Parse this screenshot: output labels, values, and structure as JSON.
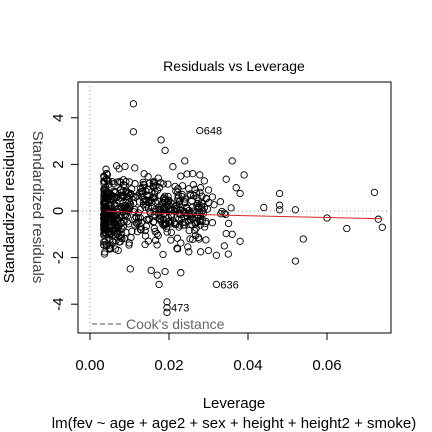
{
  "chart_data": {
    "type": "scatter",
    "title": "Residuals vs Leverage",
    "xlabel": "Leverage",
    "ylabel": "Standardized residuals",
    "subtitle": "lm(fev ~ age + age2 + sex + height + height2 + smoke)",
    "xlim": [
      0.0,
      0.076
    ],
    "ylim": [
      -5.3,
      5.2
    ],
    "x_ticks": [
      "0.00",
      "0.02",
      "0.04",
      "0.06"
    ],
    "y_ticks": [
      "-4",
      "-2",
      "0",
      "2",
      "4"
    ],
    "legend": {
      "label": "Cook's distance",
      "placement": "bottom-left"
    },
    "labeled_points": [
      {
        "label": "648",
        "x": 0.0278,
        "y": 3.45
      },
      {
        "label": "636",
        "x": 0.032,
        "y": -3.15
      },
      {
        "label": "473",
        "x": 0.0195,
        "y": -4.15
      }
    ],
    "smooth_line": {
      "x": [
        0.004,
        0.01,
        0.02,
        0.03,
        0.04,
        0.05,
        0.06,
        0.074
      ],
      "y": [
        0.0,
        -0.06,
        -0.12,
        -0.16,
        -0.2,
        -0.24,
        -0.28,
        -0.33
      ]
    },
    "outlier_points": [
      {
        "x": 0.011,
        "y": 4.6
      },
      {
        "x": 0.011,
        "y": 3.4
      },
      {
        "x": 0.018,
        "y": 3.05
      },
      {
        "x": 0.019,
        "y": 2.6
      },
      {
        "x": 0.036,
        "y": 2.15
      },
      {
        "x": 0.039,
        "y": 1.55
      },
      {
        "x": 0.037,
        "y": 1.0
      },
      {
        "x": 0.038,
        "y": 0.75
      },
      {
        "x": 0.048,
        "y": 0.75
      },
      {
        "x": 0.072,
        "y": 0.8
      },
      {
        "x": 0.044,
        "y": 0.15
      },
      {
        "x": 0.048,
        "y": 0.25
      },
      {
        "x": 0.048,
        "y": 0.05
      },
      {
        "x": 0.052,
        "y": 0.05
      },
      {
        "x": 0.06,
        "y": -0.3
      },
      {
        "x": 0.073,
        "y": -0.35
      },
      {
        "x": 0.074,
        "y": -0.7
      },
      {
        "x": 0.065,
        "y": -0.75
      },
      {
        "x": 0.054,
        "y": -1.2
      },
      {
        "x": 0.052,
        "y": -2.15
      },
      {
        "x": 0.036,
        "y": -1.0
      },
      {
        "x": 0.038,
        "y": -1.3
      },
      {
        "x": 0.034,
        "y": -1.5
      },
      {
        "x": 0.03,
        "y": -1.7
      },
      {
        "x": 0.028,
        "y": -1.75
      },
      {
        "x": 0.032,
        "y": -1.9
      },
      {
        "x": 0.035,
        "y": -1.85
      },
      {
        "x": 0.0195,
        "y": -3.9
      },
      {
        "x": 0.0195,
        "y": -4.35
      },
      {
        "x": 0.0175,
        "y": -3.15
      },
      {
        "x": 0.023,
        "y": -2.65
      },
      {
        "x": 0.019,
        "y": -2.6
      },
      {
        "x": 0.017,
        "y": -2.75
      },
      {
        "x": 0.0155,
        "y": -2.55
      },
      {
        "x": 0.025,
        "y": -1.75
      },
      {
        "x": 0.022,
        "y": -1.6
      },
      {
        "x": 0.028,
        "y": 1.0
      },
      {
        "x": 0.031,
        "y": 0.6
      },
      {
        "x": 0.026,
        "y": 1.6
      },
      {
        "x": 0.024,
        "y": 2.15
      },
      {
        "x": 0.021,
        "y": 1.9
      },
      {
        "x": 0.023,
        "y": 1.5
      },
      {
        "x": 0.03,
        "y": 0.9
      },
      {
        "x": 0.033,
        "y": 0.4
      },
      {
        "x": 0.034,
        "y": -0.1
      },
      {
        "x": 0.031,
        "y": -0.5
      }
    ]
  }
}
